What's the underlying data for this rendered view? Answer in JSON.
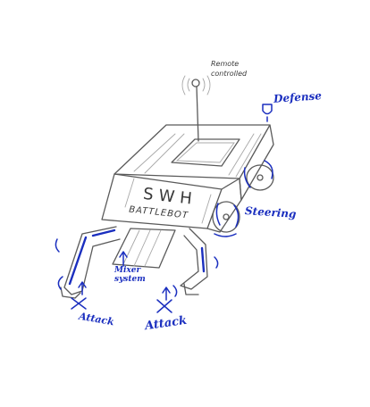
{
  "labels": {
    "remote": "Remote controlled",
    "defense": "Defense",
    "steering": "Steering",
    "mixer": "Mixer system",
    "attack_left": "Attack",
    "attack_right": "Attack",
    "plate_line1": "SWH",
    "plate_line2": "BATTLEBOT"
  },
  "colors": {
    "pencil": "#5a5a5a",
    "ink": "#1b2fbf",
    "paper": "#ffffff"
  },
  "icons": [
    "antenna-icon",
    "shield-icon",
    "wheel-icon",
    "attack-icon",
    "arrow-icon"
  ]
}
